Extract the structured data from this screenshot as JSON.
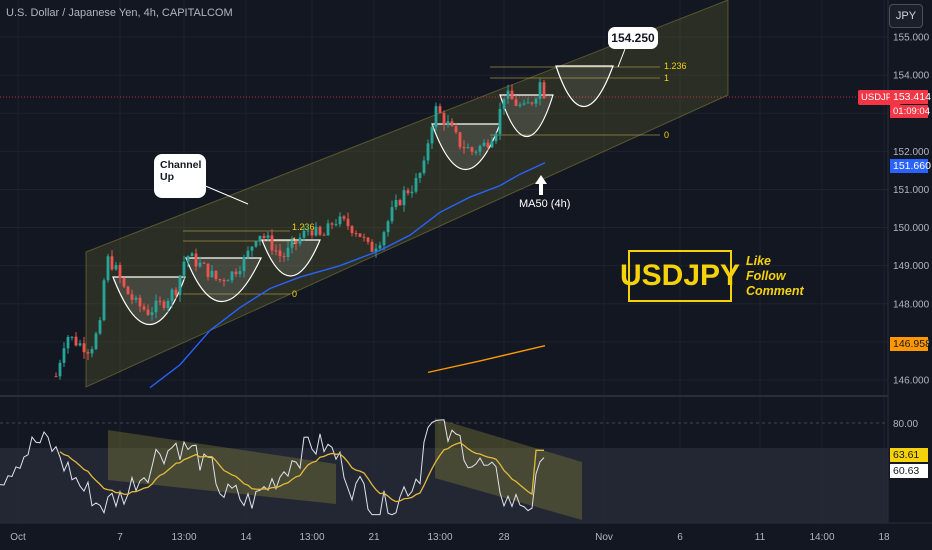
{
  "header": {
    "title": "U.S. Dollar / Japanese Yen, 4h, CAPITALCOM"
  },
  "currency_button": "JPY",
  "price_axis": [
    "155.000",
    "154.000",
    "153.000",
    "152.000",
    "151.000",
    "150.000",
    "149.000",
    "148.000",
    "147.000",
    "146.000"
  ],
  "price_tags": {
    "symbol": "USDJPY",
    "last": "153.414",
    "countdown": "01:09:04",
    "ma50": "151.660",
    "ma200": "146.958",
    "osc_yellow": "63.61",
    "osc_white": "60.63",
    "osc_level": "80.00"
  },
  "time_axis": [
    "Oct",
    "7",
    "13:00",
    "14",
    "13:00",
    "21",
    "13:00",
    "28",
    "Nov",
    "6",
    "11",
    "14:00",
    "18"
  ],
  "annotations": {
    "channel_label": "Channel Up",
    "target": "154.250",
    "ma50_label": "MA50 (4h)",
    "fib_left": [
      "1.236",
      "1",
      "0"
    ],
    "fib_right": [
      "1.236",
      "1",
      "0"
    ]
  },
  "branding": {
    "logo": "USDJPY",
    "cta": [
      "Like",
      "Follow",
      "Comment"
    ]
  },
  "colors": {
    "background": "#131722",
    "bull": "#26a69a",
    "bear": "#ef5350",
    "ma50": "#2962ff",
    "ma200": "#ff9800",
    "channel": "#8d8a3a",
    "accent": "#f5d20a"
  },
  "chart_data": {
    "type": "candlestick",
    "ylim": [
      145.7,
      155.7
    ],
    "ma50": [
      [
        150,
        145.8
      ],
      [
        180,
        146.4
      ],
      [
        210,
        147.3
      ],
      [
        240,
        147.9
      ],
      [
        270,
        148.4
      ],
      [
        300,
        148.7
      ],
      [
        340,
        149.0
      ],
      [
        380,
        149.4
      ],
      [
        410,
        149.8
      ],
      [
        440,
        150.4
      ],
      [
        470,
        150.8
      ],
      [
        500,
        151.1
      ],
      [
        520,
        151.4
      ],
      [
        545,
        151.7
      ]
    ],
    "ma200": [
      [
        428,
        146.2
      ],
      [
        480,
        146.5
      ],
      [
        545,
        146.9
      ]
    ],
    "oscillator": {
      "ylim": [
        0,
        100
      ],
      "level": 80,
      "yellow_last": 63.61,
      "white_last": 60.63
    }
  }
}
